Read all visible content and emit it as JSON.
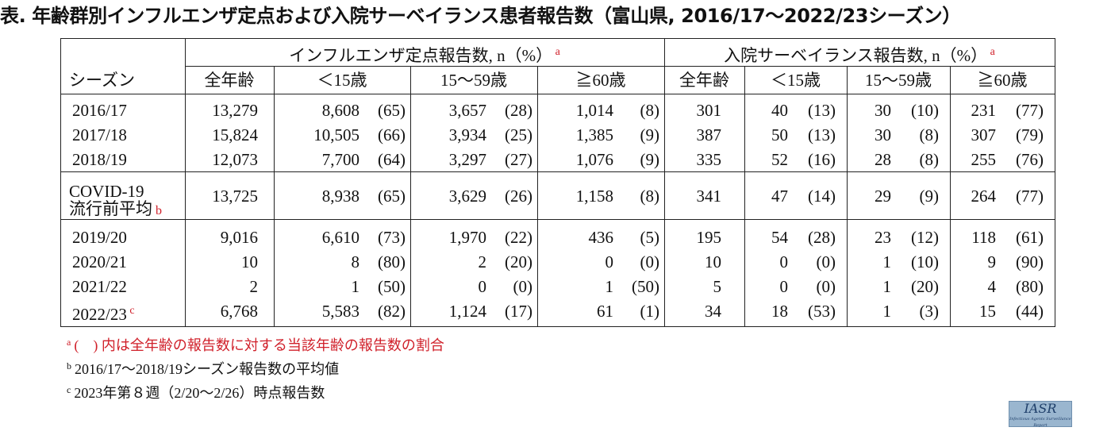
{
  "title": "表. 年齢群別インフルエンザ定点および入院サーベイランス患者報告数（富山県, 2016/17〜2022/23シーズン）",
  "table": {
    "season_header": "シーズン",
    "group_sentinel": "インフルエンザ定点報告数, n（%）",
    "group_hospital": "入院サーベイランス報告数, n（%）",
    "group_mark": "a",
    "age_headers": [
      "全年齢",
      "＜15歳",
      "15〜59歳",
      "≧60歳",
      "全年齢",
      "＜15歳",
      "15〜59歳",
      "≧60歳"
    ],
    "rows": [
      {
        "season": "2016/17",
        "mark": "",
        "cells": [
          [
            "13,279",
            ""
          ],
          [
            "8,608",
            "(65)"
          ],
          [
            "3,657",
            "(28)"
          ],
          [
            "1,014",
            "(8)"
          ],
          [
            "301",
            ""
          ],
          [
            "40",
            "(13)"
          ],
          [
            "30",
            "(10)"
          ],
          [
            "231",
            "(77)"
          ]
        ]
      },
      {
        "season": "2017/18",
        "mark": "",
        "cells": [
          [
            "15,824",
            ""
          ],
          [
            "10,505",
            "(66)"
          ],
          [
            "3,934",
            "(25)"
          ],
          [
            "1,385",
            "(9)"
          ],
          [
            "387",
            ""
          ],
          [
            "50",
            "(13)"
          ],
          [
            "30",
            "(8)"
          ],
          [
            "307",
            "(79)"
          ]
        ]
      },
      {
        "season": "2018/19",
        "mark": "",
        "cells": [
          [
            "12,073",
            ""
          ],
          [
            "7,700",
            "(64)"
          ],
          [
            "3,297",
            "(27)"
          ],
          [
            "1,076",
            "(9)"
          ],
          [
            "335",
            ""
          ],
          [
            "52",
            "(16)"
          ],
          [
            "28",
            "(8)"
          ],
          [
            "255",
            "(76)"
          ]
        ]
      },
      {
        "season": "COVID-19",
        "season2": "流行前平均",
        "mark": "b",
        "cells": [
          [
            "13,725",
            ""
          ],
          [
            "8,938",
            "(65)"
          ],
          [
            "3,629",
            "(26)"
          ],
          [
            "1,158",
            "(8)"
          ],
          [
            "341",
            ""
          ],
          [
            "47",
            "(14)"
          ],
          [
            "29",
            "(9)"
          ],
          [
            "264",
            "(77)"
          ]
        ]
      },
      {
        "season": "2019/20",
        "mark": "",
        "cells": [
          [
            "9,016",
            ""
          ],
          [
            "6,610",
            "(73)"
          ],
          [
            "1,970",
            "(22)"
          ],
          [
            "436",
            "(5)"
          ],
          [
            "195",
            ""
          ],
          [
            "54",
            "(28)"
          ],
          [
            "23",
            "(12)"
          ],
          [
            "118",
            "(61)"
          ]
        ]
      },
      {
        "season": "2020/21",
        "mark": "",
        "cells": [
          [
            "10",
            ""
          ],
          [
            "8",
            "(80)"
          ],
          [
            "2",
            "(20)"
          ],
          [
            "0",
            "(0)"
          ],
          [
            "10",
            ""
          ],
          [
            "0",
            "(0)"
          ],
          [
            "1",
            "(10)"
          ],
          [
            "9",
            "(90)"
          ]
        ]
      },
      {
        "season": "2021/22",
        "mark": "",
        "cells": [
          [
            "2",
            ""
          ],
          [
            "1",
            "(50)"
          ],
          [
            "0",
            "(0)"
          ],
          [
            "1",
            "(50)"
          ],
          [
            "5",
            ""
          ],
          [
            "0",
            "(0)"
          ],
          [
            "1",
            "(20)"
          ],
          [
            "4",
            "(80)"
          ]
        ]
      },
      {
        "season": "2022/23",
        "mark": "c",
        "cells": [
          [
            "6,768",
            ""
          ],
          [
            "5,583",
            "(82)"
          ],
          [
            "1,124",
            "(17)"
          ],
          [
            "61",
            "(1)"
          ],
          [
            "34",
            ""
          ],
          [
            "18",
            "(53)"
          ],
          [
            "1",
            "(3)"
          ],
          [
            "15",
            "(44)"
          ]
        ]
      }
    ]
  },
  "footnotes": [
    {
      "mark": "a",
      "text": "(　) 内は全年齢の報告数に対する当該年齢の報告数の割合",
      "red": true
    },
    {
      "mark": "b",
      "text": "2016/17〜2018/19シーズン報告数の平均値",
      "red": false
    },
    {
      "mark": "c",
      "text": "2023年第８週（2/20〜2/26）時点報告数",
      "red": false
    }
  ],
  "logo": {
    "main": "IASR",
    "sub": "Infectious Agents Surveillance Report"
  }
}
